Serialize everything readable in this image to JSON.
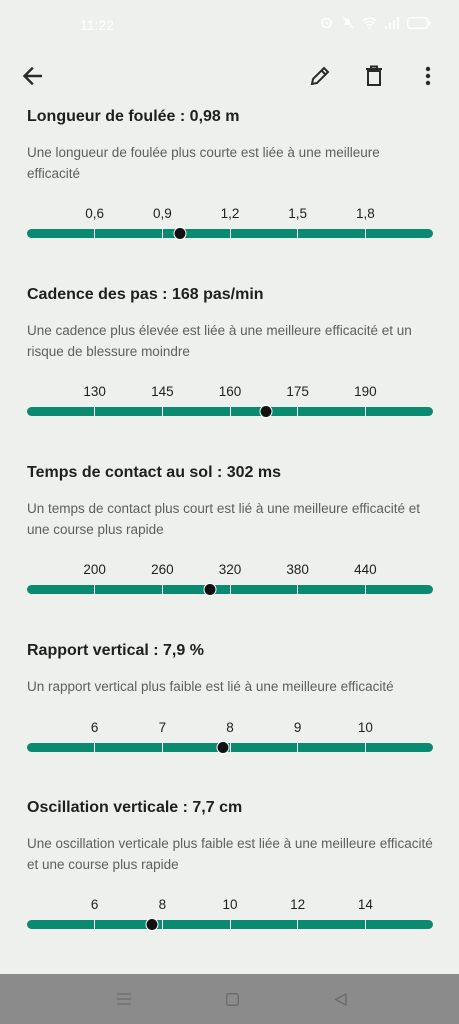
{
  "status_bar": {
    "time": "11:22"
  },
  "app_bar": {
    "back_icon": "arrow-back-icon",
    "edit_icon": "pencil-icon",
    "delete_icon": "trash-icon",
    "menu_icon": "more-vertical-icon"
  },
  "metrics": [
    {
      "title": "Longueur de foulée : 0,98 m",
      "description": "Une longueur de foulée plus courte est liée à une meilleure efficacité",
      "ticks": [
        "0,6",
        "0,9",
        "1,2",
        "1,5",
        "1,8"
      ],
      "value": 0.98,
      "range": [
        0.3,
        2.1
      ]
    },
    {
      "title": "Cadence des pas : 168 pas/min",
      "description": "Une cadence plus élevée est liée à une meilleure efficacité et un risque de blessure moindre",
      "ticks": [
        "130",
        "145",
        "160",
        "175",
        "190"
      ],
      "value": 168,
      "range": [
        115,
        205
      ]
    },
    {
      "title": "Temps de contact au sol : 302 ms",
      "description": "Un temps de contact plus court est lié à une meilleure efficacité et une course plus rapide",
      "ticks": [
        "200",
        "260",
        "320",
        "380",
        "440"
      ],
      "value": 302,
      "range": [
        140,
        500
      ]
    },
    {
      "title": "Rapport vertical : 7,9 %",
      "description": "Un rapport vertical plus faible est lié à une meilleure efficacité",
      "ticks": [
        "6",
        "7",
        "8",
        "9",
        "10"
      ],
      "value": 7.9,
      "range": [
        5,
        11
      ]
    },
    {
      "title": "Oscillation verticale : 7,7 cm",
      "description": "Une oscillation verticale plus faible est liée à une meilleure efficacité et une course plus rapide",
      "ticks": [
        "6",
        "8",
        "10",
        "12",
        "14"
      ],
      "value": 7.7,
      "range": [
        4,
        16
      ]
    }
  ],
  "colors": {
    "accent": "#0b8a72",
    "background": "#eef0ee",
    "thumb": "#111111"
  },
  "nav_bar": {
    "recents_icon": "menu-lines-icon",
    "home_icon": "square-icon",
    "back_icon": "triangle-back-icon"
  }
}
